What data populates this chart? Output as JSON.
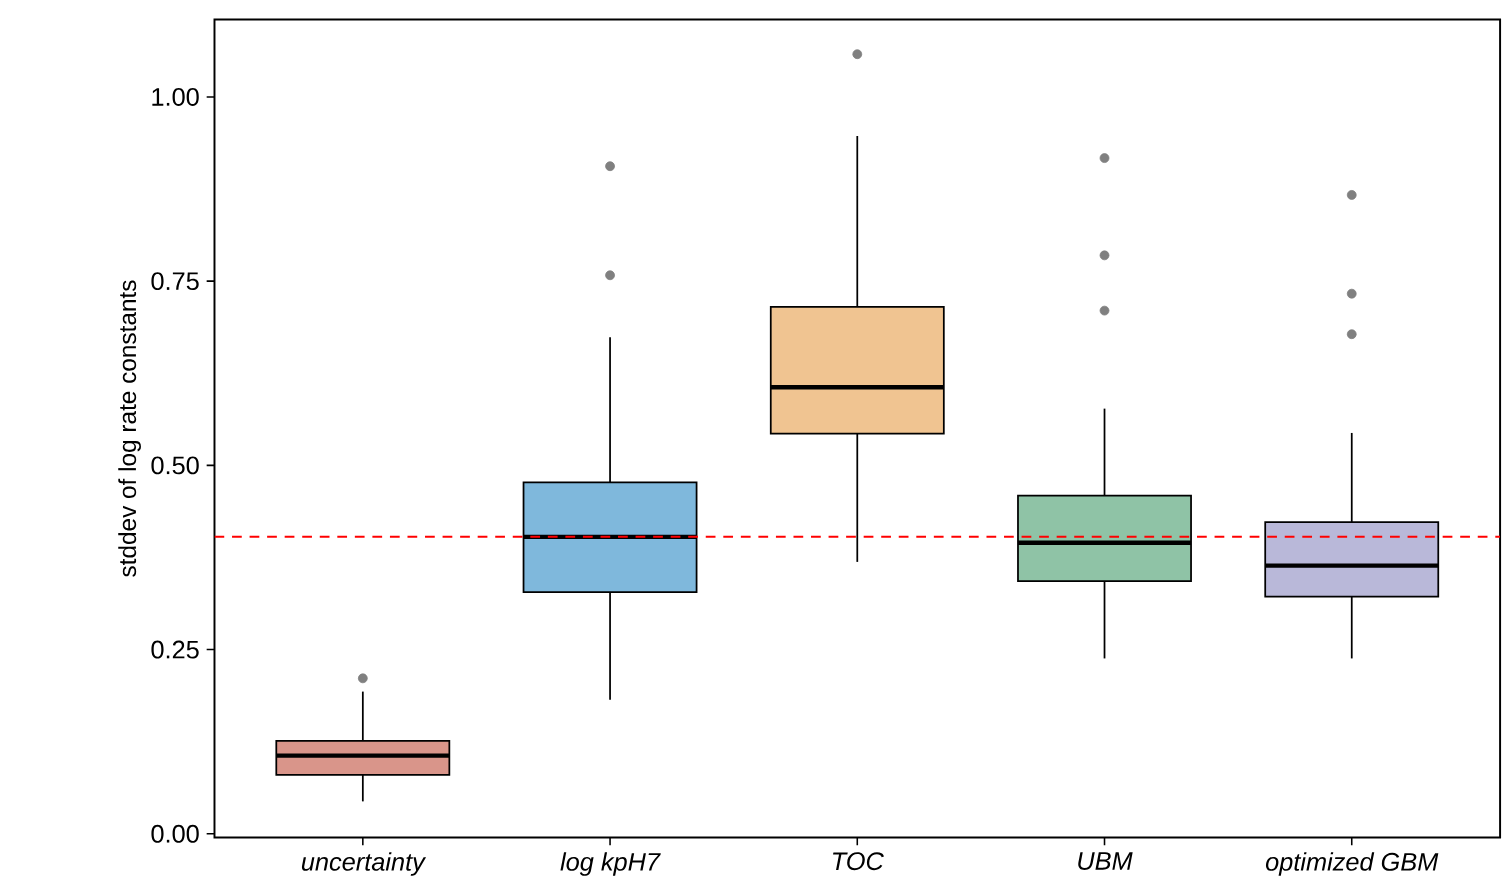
{
  "chart_data": {
    "type": "box",
    "ylabel": "stddev of log rate constants",
    "categories": [
      "uncertainty",
      "log kpH7",
      "TOC",
      "UBM",
      "optimized GBM"
    ],
    "boxes": [
      {
        "low": 0.044,
        "q1": 0.08,
        "median": 0.106,
        "q3": 0.126,
        "high": 0.193,
        "outliers": [
          0.211
        ]
      },
      {
        "low": 0.182,
        "q1": 0.328,
        "median": 0.403,
        "q3": 0.477,
        "high": 0.674,
        "outliers": [
          0.758,
          0.906
        ]
      },
      {
        "low": 0.369,
        "q1": 0.543,
        "median": 0.606,
        "q3": 0.715,
        "high": 0.947,
        "outliers": [
          1.058
        ]
      },
      {
        "low": 0.238,
        "q1": 0.343,
        "median": 0.395,
        "q3": 0.459,
        "high": 0.577,
        "outliers": [
          0.71,
          0.785,
          0.917
        ]
      },
      {
        "low": 0.238,
        "q1": 0.322,
        "median": 0.364,
        "q3": 0.423,
        "high": 0.544,
        "outliers": [
          0.678,
          0.733,
          0.867
        ]
      }
    ],
    "colors": [
      "#d9958a",
      "#7fb8dc",
      "#f0c491",
      "#8fc3a6",
      "#b9b8d9"
    ],
    "ylim": [
      -0.005,
      1.105
    ],
    "yticks": [
      {
        "value": 0,
        "label": "0.00"
      },
      {
        "value": 0.25,
        "label": "0.25"
      },
      {
        "value": 0.5,
        "label": "0.50"
      },
      {
        "value": 0.75,
        "label": "0.75"
      },
      {
        "value": 1,
        "label": "1.00"
      }
    ],
    "ref_lines": [
      {
        "axis": "y",
        "value": 0.403,
        "color": "#ff0000",
        "line_style": "dashed"
      }
    ],
    "grid": false
  }
}
